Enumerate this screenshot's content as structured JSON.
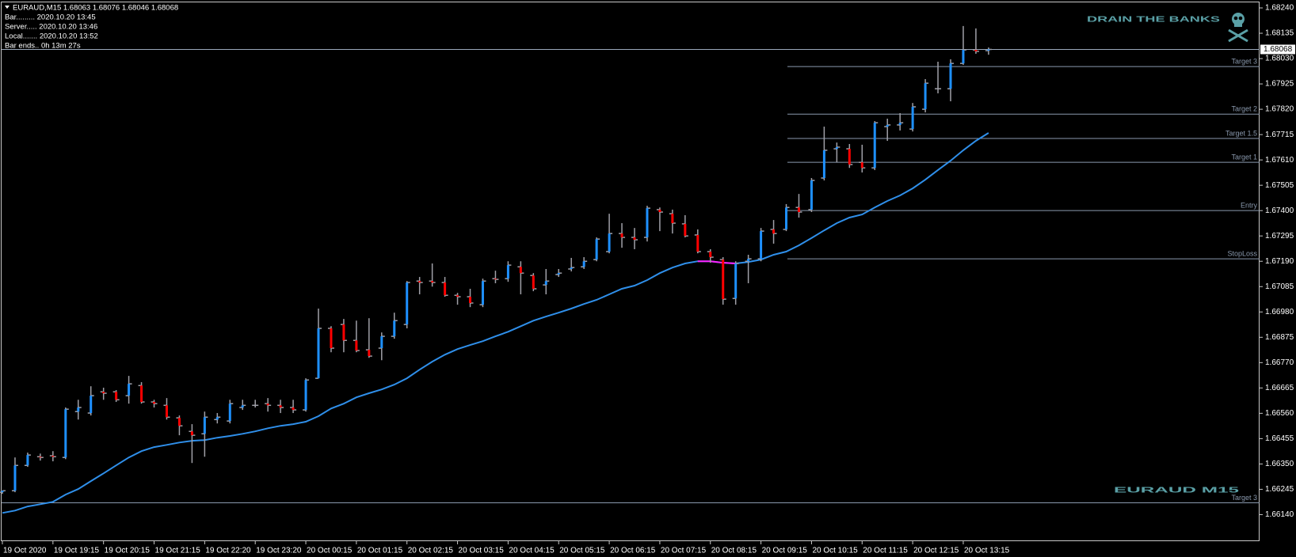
{
  "info_lines": [
    "EURAUD,M15  1.68063 1.68076 1.68046 1.68068",
    "Bar......... 2020.10.20 13:45",
    "Server..... 2020.10.20 13:46",
    "Local....... 2020.10.20 13:52",
    "Bar ends.. 0h 13m 27s"
  ],
  "watermarks": [
    "DRAIN THE BANKS",
    "EURAUD M15"
  ],
  "chart_data": {
    "type": "ohlc",
    "categories": [
      "19 Oct 2020",
      null,
      null,
      null,
      "19 Oct 19:15",
      null,
      null,
      null,
      "19 Oct 20:15",
      null,
      null,
      null,
      "19 Oct 21:15",
      null,
      null,
      null,
      "19 Oct 22:20",
      null,
      null,
      null,
      "19 Oct 23:20",
      null,
      null,
      null,
      "20 Oct 00:15",
      null,
      null,
      null,
      "20 Oct 01:15",
      null,
      null,
      null,
      "20 Oct 02:15",
      null,
      null,
      null,
      "20 Oct 03:15",
      null,
      null,
      null,
      "20 Oct 04:15",
      null,
      null,
      null,
      "20 Oct 05:15",
      null,
      null,
      null,
      "20 Oct 06:15",
      null,
      null,
      null,
      "20 Oct 07:15",
      null,
      null,
      null,
      "20 Oct 08:15",
      null,
      null,
      null,
      "20 Oct 09:15",
      null,
      null,
      null,
      "20 Oct 10:15",
      null,
      null,
      null,
      "20 Oct 11:15",
      null,
      null,
      null,
      "20 Oct 12:15",
      null,
      null,
      null,
      "20 Oct 13:15",
      null,
      null
    ],
    "open": [
      1.66233,
      1.66239,
      1.66344,
      1.6638,
      1.66384,
      1.66377,
      1.66567,
      1.66561,
      1.66649,
      1.66649,
      1.66633,
      1.66675,
      1.66607,
      1.66593,
      1.66541,
      1.66485,
      1.66475,
      1.66534,
      1.66528,
      1.66584,
      1.66593,
      1.666,
      1.66593,
      1.66584,
      1.66574,
      1.66705,
      1.66912,
      1.66928,
      1.66862,
      1.66823,
      1.6683,
      1.66879,
      1.66928,
      1.67108,
      1.67108,
      1.67102,
      1.67049,
      1.67043,
      1.6701,
      1.67118,
      1.67118,
      1.67167,
      1.67131,
      1.67092,
      1.67135,
      1.67158,
      1.67167,
      1.67197,
      1.6723,
      1.67305,
      1.67289,
      1.67289,
      1.67404,
      1.67387,
      1.67345,
      1.67299,
      1.6723,
      1.67197,
      1.67036,
      1.6719,
      1.672,
      1.67322,
      1.67322,
      1.67413,
      1.67404,
      1.67535,
      1.67656,
      1.67656,
      1.676,
      1.67577,
      1.67748,
      1.67755,
      1.67738,
      1.6782,
      1.67905,
      1.67905,
      1.6801,
      1.68066,
      1.68063
    ],
    "high": [
      1.66239,
      1.66377,
      1.66397,
      1.66393,
      1.66403,
      1.66584,
      1.66616,
      1.66672,
      1.66666,
      1.66656,
      1.66715,
      1.66689,
      1.66616,
      1.66623,
      1.66551,
      1.66515,
      1.66567,
      1.66561,
      1.66616,
      1.66616,
      1.66616,
      1.66623,
      1.66616,
      1.66616,
      1.66705,
      1.66994,
      1.66921,
      1.66951,
      1.66944,
      1.66954,
      1.66895,
      1.66977,
      1.67108,
      1.67125,
      1.67181,
      1.67125,
      1.67059,
      1.67076,
      1.67118,
      1.67151,
      1.6719,
      1.6719,
      1.67141,
      1.67158,
      1.67158,
      1.67204,
      1.67207,
      1.67289,
      1.67387,
      1.67348,
      1.67328,
      1.6742,
      1.67413,
      1.67404,
      1.67381,
      1.67322,
      1.6724,
      1.67207,
      1.6719,
      1.67217,
      1.67328,
      1.67361,
      1.67427,
      1.67469,
      1.67535,
      1.67748,
      1.67682,
      1.67676,
      1.67673,
      1.67771,
      1.67781,
      1.67804,
      1.67846,
      1.67945,
      1.68017,
      1.68027,
      1.68165,
      1.68155,
      1.68076
    ],
    "low": [
      1.66226,
      1.66233,
      1.66338,
      1.66364,
      1.66361,
      1.6637,
      1.66534,
      1.66551,
      1.66616,
      1.66607,
      1.666,
      1.666,
      1.66584,
      1.66534,
      1.66469,
      1.66354,
      1.6638,
      1.66518,
      1.66518,
      1.66574,
      1.66584,
      1.66567,
      1.66561,
      1.66561,
      1.66567,
      1.66705,
      1.66813,
      1.66813,
      1.66813,
      1.6679,
      1.6678,
      1.66869,
      1.66912,
      1.67053,
      1.67085,
      1.67043,
      1.6701,
      1.67,
      1.67,
      1.67099,
      1.67105,
      1.67053,
      1.67066,
      1.67053,
      1.67125,
      1.67148,
      1.67158,
      1.6719,
      1.67223,
      1.67246,
      1.6724,
      1.67272,
      1.67315,
      1.67305,
      1.67289,
      1.67223,
      1.67184,
      1.6701,
      1.6701,
      1.67099,
      1.6719,
      1.67263,
      1.67315,
      1.67371,
      1.67394,
      1.67525,
      1.676,
      1.67577,
      1.67558,
      1.67568,
      1.67689,
      1.67732,
      1.67728,
      1.67807,
      1.67886,
      1.67853,
      1.68004,
      1.6805,
      1.68046
    ],
    "close": [
      1.66239,
      1.66344,
      1.66387,
      1.66377,
      1.6638,
      1.66577,
      1.66584,
      1.66633,
      1.66643,
      1.66616,
      1.66682,
      1.66607,
      1.666,
      1.66544,
      1.66508,
      1.66469,
      1.66544,
      1.66544,
      1.666,
      1.66593,
      1.66593,
      1.66593,
      1.66584,
      1.66574,
      1.66698,
      1.66912,
      1.6683,
      1.66862,
      1.6682,
      1.66797,
      1.66879,
      1.66944,
      1.67102,
      1.67102,
      1.67102,
      1.67049,
      1.67043,
      1.67017,
      1.67108,
      1.67115,
      1.67174,
      1.67141,
      1.67076,
      1.67108,
      1.67141,
      1.67164,
      1.6719,
      1.67282,
      1.67305,
      1.67289,
      1.67279,
      1.6741,
      1.67394,
      1.67348,
      1.67295,
      1.6723,
      1.67207,
      1.67033,
      1.67181,
      1.672,
      1.67315,
      1.67305,
      1.67413,
      1.67394,
      1.67525,
      1.6765,
      1.67663,
      1.67591,
      1.67577,
      1.67764,
      1.67755,
      1.67764,
      1.6783,
      1.67928,
      1.67905,
      1.6801,
      1.68066,
      1.6806,
      1.68068
    ],
    "ma": [
      1.66147,
      1.66157,
      1.66174,
      1.66183,
      1.66193,
      1.66223,
      1.66246,
      1.66279,
      1.66311,
      1.66344,
      1.66377,
      1.66403,
      1.6642,
      1.66429,
      1.66439,
      1.66446,
      1.66449,
      1.66459,
      1.66466,
      1.66475,
      1.66485,
      1.66498,
      1.66508,
      1.66515,
      1.66525,
      1.66548,
      1.6658,
      1.666,
      1.66626,
      1.66643,
      1.66659,
      1.66679,
      1.66705,
      1.66741,
      1.66774,
      1.66803,
      1.66826,
      1.66843,
      1.66859,
      1.66879,
      1.66898,
      1.66921,
      1.66944,
      1.66961,
      1.66977,
      1.66994,
      1.67013,
      1.6703,
      1.67053,
      1.67076,
      1.67089,
      1.67112,
      1.67141,
      1.67164,
      1.67181,
      1.6719,
      1.6719,
      1.67184,
      1.67181,
      1.67187,
      1.67197,
      1.67217,
      1.6723,
      1.67256,
      1.67286,
      1.67318,
      1.67348,
      1.67371,
      1.67384,
      1.67413,
      1.6744,
      1.67463,
      1.67492,
      1.67528,
      1.67568,
      1.67607,
      1.6765,
      1.67689,
      1.67722
    ],
    "levels": [
      {
        "name": "Target 3",
        "value": 1.67997
      },
      {
        "name": "Target 2",
        "value": 1.678
      },
      {
        "name": "Target 1.5",
        "value": 1.67699
      },
      {
        "name": "Target 1",
        "value": 1.676
      },
      {
        "name": "Entry",
        "value": 1.674
      },
      {
        "name": "StopLoss",
        "value": 1.672
      }
    ],
    "full_levels": [
      {
        "name": "Target 3",
        "value": 1.66189
      }
    ],
    "ylim": [
      1.6603,
      1.6824
    ],
    "yticks": [
      {
        "value": 1.6824,
        "label": "1.68240"
      },
      {
        "value": 1.68135,
        "label": "1.68135"
      },
      {
        "value": 1.6803,
        "label": "1.68030"
      },
      {
        "value": 1.67925,
        "label": "1.67925"
      },
      {
        "value": 1.6782,
        "label": "1.67820"
      },
      {
        "value": 1.67715,
        "label": "1.67715"
      },
      {
        "value": 1.6761,
        "label": "1.67610"
      },
      {
        "value": 1.67505,
        "label": "1.67505"
      },
      {
        "value": 1.674,
        "label": "1.67400"
      },
      {
        "value": 1.67295,
        "label": "1.67295"
      },
      {
        "value": 1.6719,
        "label": "1.67190"
      },
      {
        "value": 1.67085,
        "label": "1.67085"
      },
      {
        "value": 1.6698,
        "label": "1.66980"
      },
      {
        "value": 1.66875,
        "label": "1.66875"
      },
      {
        "value": 1.6677,
        "label": "1.66770"
      },
      {
        "value": 1.66665,
        "label": "1.66665"
      },
      {
        "value": 1.6656,
        "label": "1.66560"
      },
      {
        "value": 1.66455,
        "label": "1.66455"
      },
      {
        "value": 1.6635,
        "label": "1.66350"
      },
      {
        "value": 1.66245,
        "label": "1.66245"
      },
      {
        "value": 1.6614,
        "label": "1.66140"
      }
    ],
    "up_color": "#1e90ff",
    "down_color": "#ff0000",
    "bar_color": "#a0a0a8",
    "ma_color": "#2f8fea",
    "ma_down_color": "#ff20ff",
    "level_color": "#8a99ae"
  }
}
